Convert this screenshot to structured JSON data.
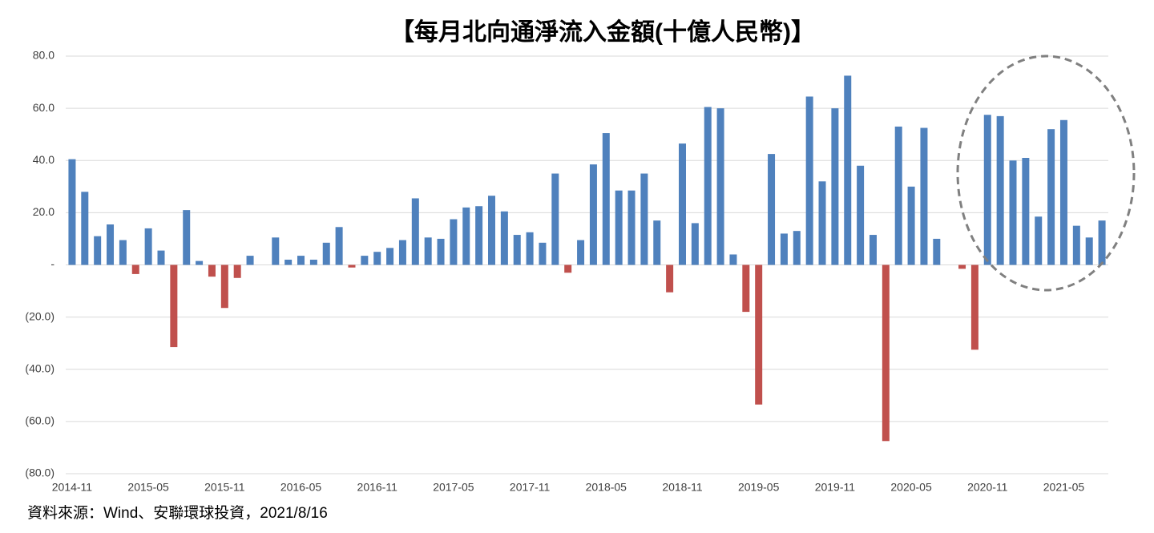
{
  "chart_data": {
    "type": "bar",
    "title": "【每月北向通淨流入金額(十億人民幣)】",
    "source": "資料來源：Wind、安聯環球投資，2021/8/16",
    "categories": [
      "2014-11",
      null,
      null,
      null,
      null,
      null,
      "2015-05",
      null,
      null,
      null,
      null,
      null,
      "2015-11",
      null,
      null,
      null,
      null,
      null,
      "2016-05",
      null,
      null,
      null,
      null,
      null,
      "2016-11",
      null,
      null,
      null,
      null,
      null,
      "2017-05",
      null,
      null,
      null,
      null,
      null,
      "2017-11",
      null,
      null,
      null,
      null,
      null,
      "2018-05",
      null,
      null,
      null,
      null,
      null,
      "2018-11",
      null,
      null,
      null,
      null,
      null,
      "2019-05",
      null,
      null,
      null,
      null,
      null,
      "2019-11",
      null,
      null,
      null,
      null,
      null,
      "2020-05",
      null,
      null,
      null,
      null,
      null,
      "2020-11",
      null,
      null,
      null,
      null,
      null,
      "2021-05",
      null,
      null,
      null
    ],
    "values": [
      40.5,
      28,
      11,
      15.5,
      9.5,
      -3.5,
      14,
      5.5,
      -31.5,
      21,
      1.5,
      -4.5,
      -16.5,
      -5,
      3.5,
      0,
      10.5,
      2,
      3.5,
      2,
      8.5,
      14.5,
      -1,
      3.5,
      5,
      6.5,
      9.5,
      25.5,
      10.5,
      10,
      17.5,
      22,
      22.5,
      26.5,
      20.5,
      11.5,
      12.5,
      8.5,
      35,
      -3,
      9.5,
      38.5,
      50.5,
      28.5,
      28.5,
      35,
      17,
      -10.5,
      46.5,
      16,
      60.5,
      60,
      4,
      -18,
      -53.5,
      42.5,
      12,
      13,
      64.5,
      32,
      60,
      72.5,
      38,
      11.5,
      -67.5,
      53,
      30,
      52.5,
      10,
      0,
      -1.5,
      -32.5,
      57.5,
      57,
      40,
      41,
      18.5,
      52,
      55.5,
      15,
      10.5,
      17
    ],
    "colors": {
      "positive": "#4f81bd",
      "negative": "#c0504d"
    },
    "ylim": [
      -80,
      80
    ],
    "yticks": [
      {
        "value": -80,
        "label": "(80.0)"
      },
      {
        "value": -60,
        "label": "(60.0)"
      },
      {
        "value": -40,
        "label": "(40.0)"
      },
      {
        "value": -20,
        "label": "(20.0)"
      },
      {
        "value": 0,
        "label": "-"
      },
      {
        "value": 20,
        "label": "20.0"
      },
      {
        "value": 40,
        "label": "40.0"
      },
      {
        "value": 60,
        "label": "60.0"
      },
      {
        "value": 80,
        "label": "80.0"
      }
    ],
    "grid": true
  }
}
